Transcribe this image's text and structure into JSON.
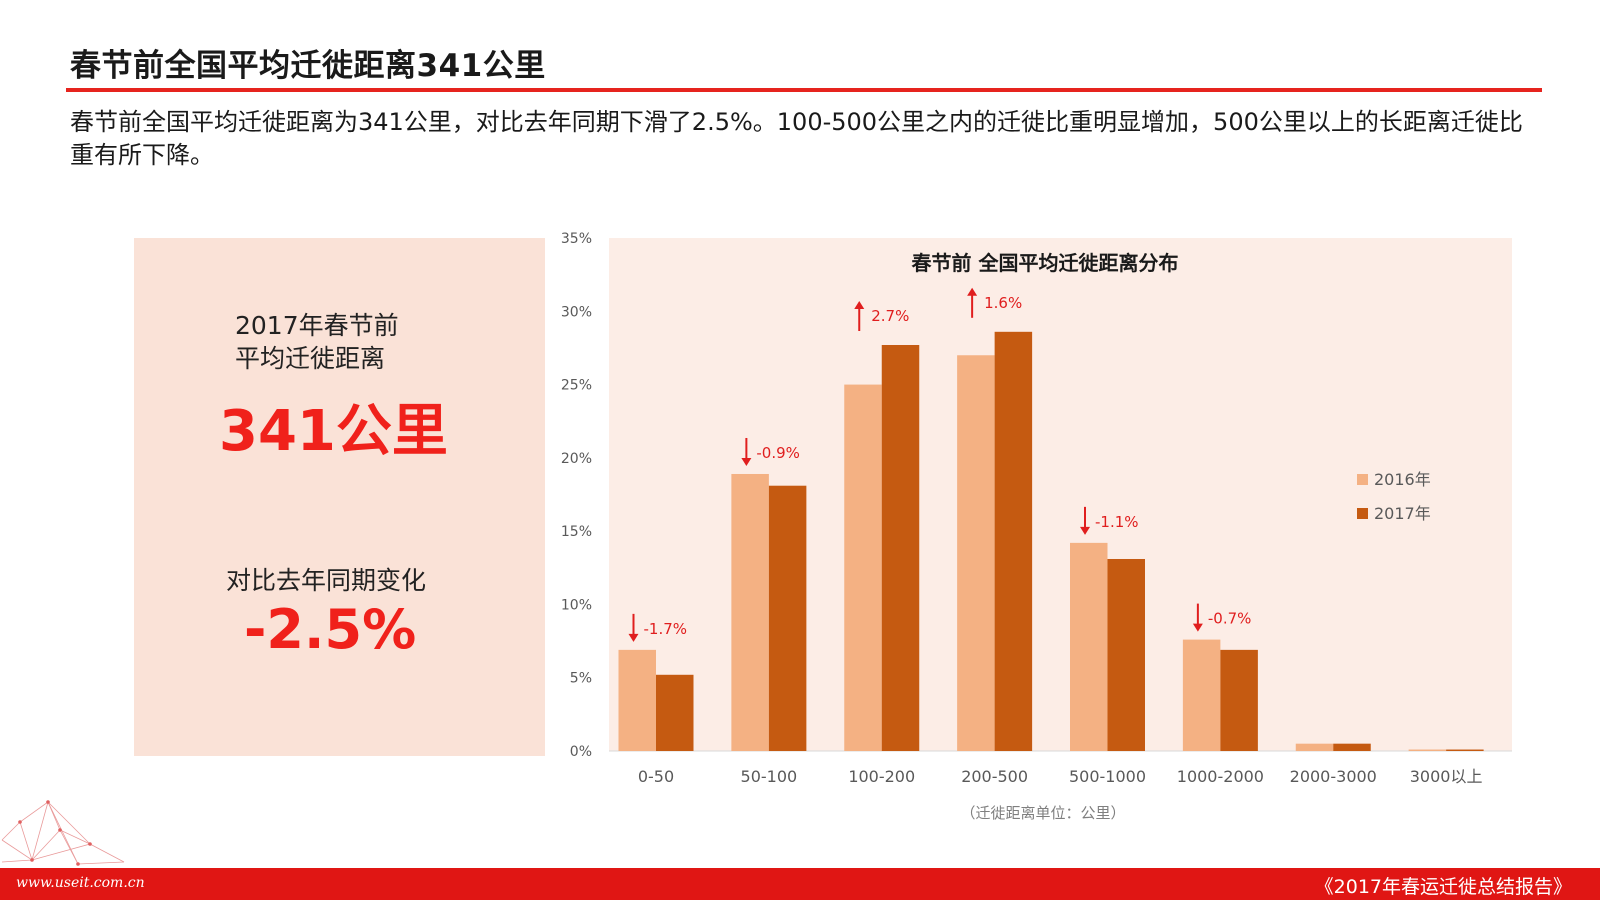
{
  "header": {
    "title": "春节前全国平均迁徙距离341公里",
    "summary": "春节前全国平均迁徙距离为341公里，对比去年同期下滑了2.5%。100-500公里之内的迁徙比重明显增加，500公里以上的长距离迁徙比重有所下降。"
  },
  "stat_panel": {
    "label_line1": "2017年春节前",
    "label_line2": "平均迁徙距离",
    "value": "341公里",
    "change_label": "对比去年同期变化",
    "change_value": "-2.5%"
  },
  "footer": {
    "url": "www.useit.com.cn",
    "report": "《2017年春运迁徙总结报告》"
  },
  "colors": {
    "accent": "#e6241e",
    "series_2016": "#f4b183",
    "series_2017": "#c55a11",
    "plot_bg": "#fcede6",
    "annotation": "#e01e1e"
  },
  "chart_data": {
    "type": "bar",
    "title": "春节前 全国平均迁徙距离分布",
    "xlabel": "（迁徙距离单位：公里）",
    "ylabel": "",
    "categories": [
      "0-50",
      "50-100",
      "100-200",
      "200-500",
      "500-1000",
      "1000-2000",
      "2000-3000",
      "3000以上"
    ],
    "series": [
      {
        "name": "2016年",
        "values": [
          6.9,
          18.9,
          25.0,
          27.0,
          14.2,
          7.6,
          0.5,
          0.1
        ]
      },
      {
        "name": "2017年",
        "values": [
          5.2,
          18.1,
          27.7,
          28.6,
          13.1,
          6.9,
          0.5,
          0.1
        ]
      }
    ],
    "changes": [
      {
        "index": 0,
        "label": "-1.7%",
        "direction": "down"
      },
      {
        "index": 1,
        "label": "-0.9%",
        "direction": "down"
      },
      {
        "index": 2,
        "label": "2.7%",
        "direction": "up"
      },
      {
        "index": 3,
        "label": "1.6%",
        "direction": "up"
      },
      {
        "index": 4,
        "label": "-1.1%",
        "direction": "down"
      },
      {
        "index": 5,
        "label": "-0.7%",
        "direction": "down"
      }
    ],
    "ylim": [
      0,
      35
    ],
    "yticks": [
      0,
      5,
      10,
      15,
      20,
      25,
      30,
      35
    ],
    "ytick_format": "%",
    "grid": false,
    "legend_position": "right"
  }
}
